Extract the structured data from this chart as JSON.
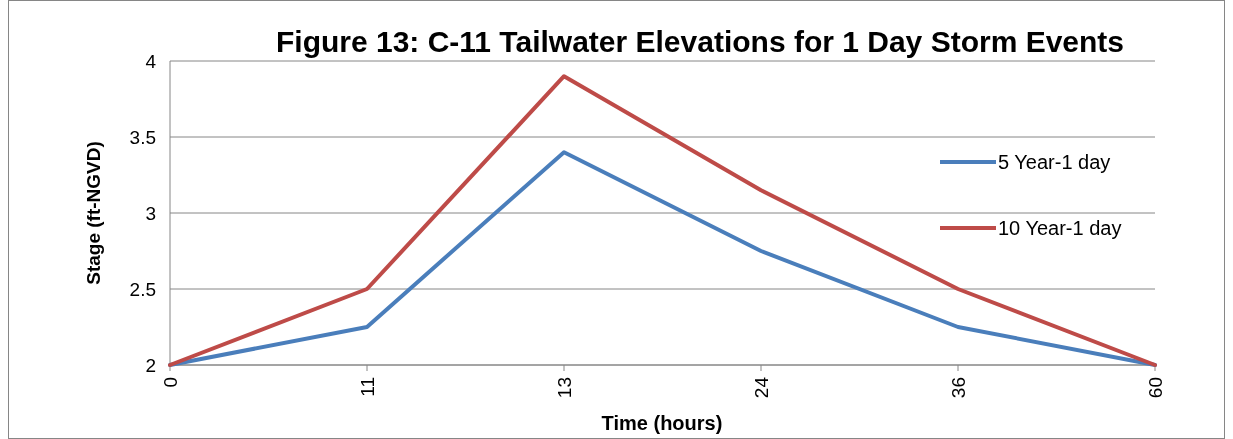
{
  "chart_data": {
    "type": "line",
    "title": "Figure 13:  C-11 Tailwater Elevations for 1 Day Storm Events",
    "xlabel": "Time (hours)",
    "ylabel": "Stage (ft-NGVD)",
    "categories": [
      "0",
      "11",
      "13",
      "24",
      "36",
      "60"
    ],
    "series": [
      {
        "name": "5 Year-1 day",
        "color": "#4a7ebb",
        "values": [
          2,
          2.25,
          3.4,
          2.75,
          2.25,
          2
        ]
      },
      {
        "name": "10 Year-1 day",
        "color": "#be4b48",
        "values": [
          2,
          2.5,
          3.9,
          3.15,
          2.5,
          2
        ]
      }
    ],
    "ylim": [
      2,
      4
    ],
    "yticks": [
      2,
      2.5,
      3,
      3.5,
      4
    ],
    "grid": "y",
    "legend": "right",
    "marker": "none",
    "line_style": "solid"
  }
}
